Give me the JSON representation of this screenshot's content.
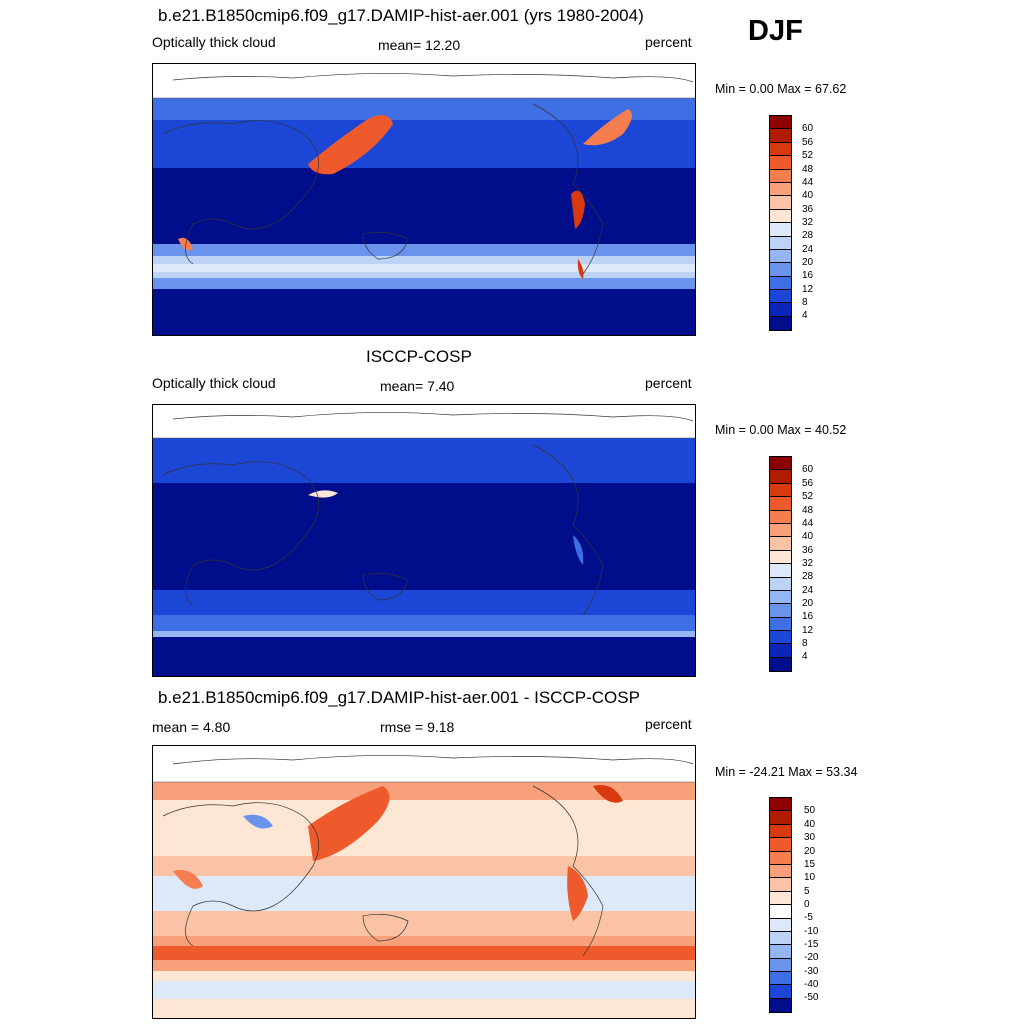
{
  "season": "DJF",
  "panels": [
    {
      "title": "b.e21.B1850cmip6.f09_g17.DAMIP-hist-aer.001 (yrs 1980-2004)",
      "left_label": "Optically thick cloud",
      "mid_label": "mean=  12.20",
      "right_label": "percent",
      "minmax": "Min =   0.00 Max =  67.62",
      "colorbar": {
        "labels": [
          "60",
          "56",
          "52",
          "48",
          "44",
          "40",
          "36",
          "32",
          "28",
          "24",
          "20",
          "16",
          "12",
          "8",
          "4"
        ],
        "colors": [
          "#8b0000",
          "#b01c00",
          "#d83a10",
          "#ee5a2c",
          "#f57e50",
          "#f8a079",
          "#fbc3a6",
          "#fde6d4",
          "#dde9f8",
          "#bcd3f6",
          "#94b6f2",
          "#6a94ec",
          "#3f6fe4",
          "#1c46d6",
          "#0a25b8",
          "#000e8c"
        ]
      }
    },
    {
      "title": "ISCCP-COSP",
      "left_label": "Optically thick cloud",
      "mid_label": "mean=   7.40",
      "right_label": "percent",
      "minmax": "Min =   0.00 Max =  40.52",
      "colorbar": {
        "labels": [
          "60",
          "56",
          "52",
          "48",
          "44",
          "40",
          "36",
          "32",
          "28",
          "24",
          "20",
          "16",
          "12",
          "8",
          "4"
        ],
        "colors": [
          "#8b0000",
          "#b01c00",
          "#d83a10",
          "#ee5a2c",
          "#f57e50",
          "#f8a079",
          "#fbc3a6",
          "#fde6d4",
          "#dde9f8",
          "#bcd3f6",
          "#94b6f2",
          "#6a94ec",
          "#3f6fe4",
          "#1c46d6",
          "#0a25b8",
          "#000e8c"
        ]
      }
    },
    {
      "title": "b.e21.B1850cmip6.f09_g17.DAMIP-hist-aer.001 - ISCCP-COSP",
      "left_label": "mean =   4.80",
      "mid_label": "rmse =   9.18",
      "right_label": "percent",
      "minmax": "Min = -24.21 Max =  53.34",
      "colorbar": {
        "labels": [
          "50",
          "40",
          "30",
          "20",
          "15",
          "10",
          "5",
          "0",
          "-5",
          "-10",
          "-15",
          "-20",
          "-30",
          "-40",
          "-50"
        ],
        "colors": [
          "#8b0000",
          "#b01c00",
          "#d83a10",
          "#ee5a2c",
          "#f57e50",
          "#f8a079",
          "#fbc3a6",
          "#fde6d4",
          "#ffffff",
          "#dde9f8",
          "#bcd3f6",
          "#94b6f2",
          "#6a94ec",
          "#3f6fe4",
          "#1c46d6",
          "#000e8c"
        ]
      }
    }
  ],
  "map_colors": {
    "deep_blue": "#000e8c",
    "mid_blue": "#1c46d6",
    "light_blue": "#94b6f2",
    "pale_blue": "#dde9f8",
    "pale_red": "#fde6d4",
    "mid_red": "#ee5a2c",
    "dark_red": "#b01c00"
  }
}
